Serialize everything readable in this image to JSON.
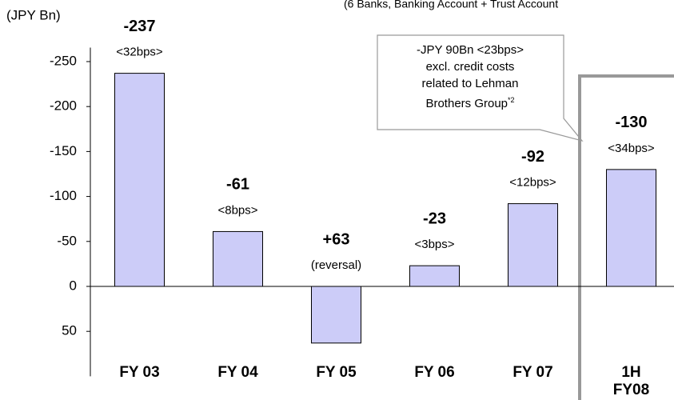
{
  "chart_data": {
    "type": "bar",
    "subtitle": "(6 Banks, Banking Account + Trust Account",
    "y_label": "(JPY Bn)",
    "categories": [
      "FY 03",
      "FY 04",
      "FY 05",
      "FY 06",
      "FY 07",
      "1H FY08"
    ],
    "values": [
      -237,
      -61,
      63,
      -23,
      -92,
      -130
    ],
    "value_labels": [
      "-237",
      "-61",
      "+63",
      "-23",
      "-92",
      "-130"
    ],
    "sub_labels": [
      "<32bps>",
      "<8bps>",
      "(reversal)",
      "<3bps>",
      "<12bps>",
      "<34bps>"
    ],
    "color": "#ccccf8",
    "y_inverted": true,
    "ylim": [
      -270,
      100
    ],
    "yticks": [
      -250,
      -200,
      -150,
      -100,
      -50,
      0,
      50
    ],
    "callout": {
      "lines": [
        "-JPY 90Bn <23bps>",
        "excl. credit costs",
        "related to Lehman",
        "Brothers Group"
      ],
      "note": "*2"
    }
  }
}
